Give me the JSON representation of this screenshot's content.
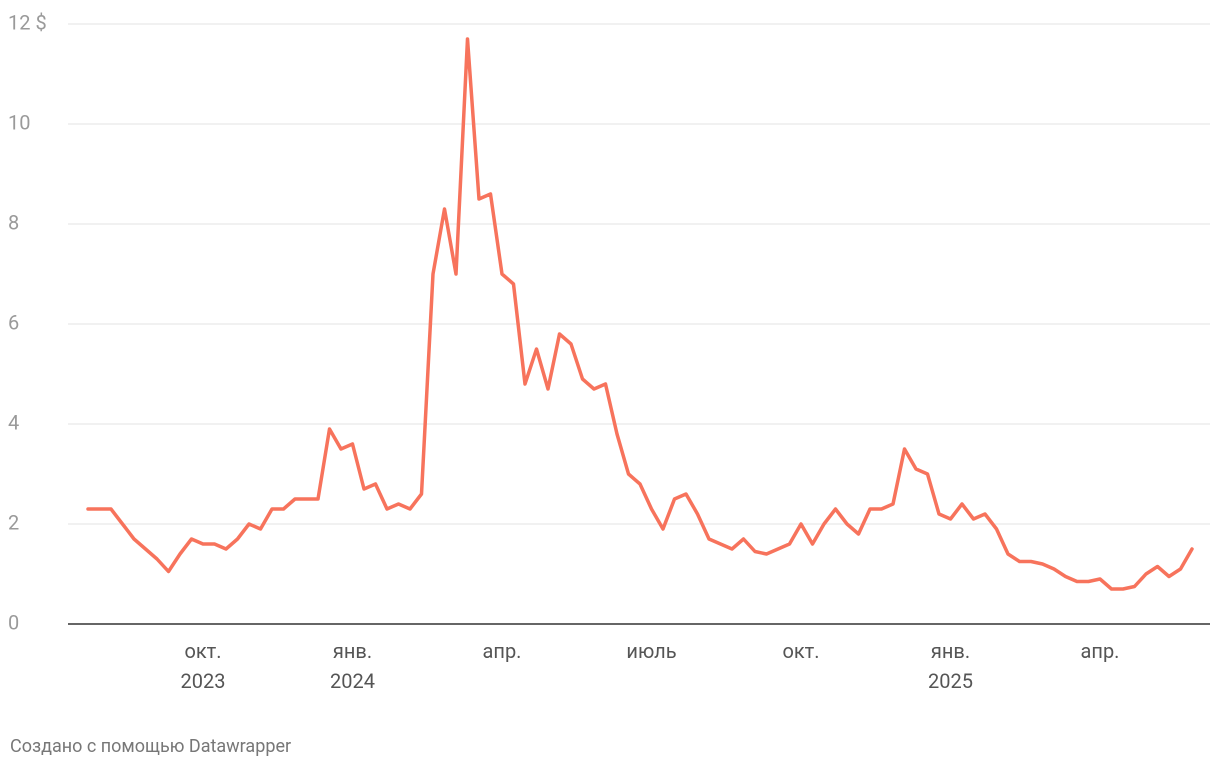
{
  "chart_data": {
    "type": "line",
    "categories": [
      null,
      null,
      null,
      null,
      null,
      null,
      null,
      null,
      null,
      null,
      "окт. 2023",
      null,
      null,
      null,
      null,
      null,
      null,
      null,
      null,
      null,
      null,
      null,
      null,
      "янв. 2024",
      null,
      null,
      null,
      null,
      null,
      null,
      null,
      null,
      null,
      null,
      null,
      null,
      "апр.",
      null,
      null,
      null,
      null,
      null,
      null,
      null,
      null,
      null,
      null,
      null,
      null,
      "июль",
      null,
      null,
      null,
      null,
      null,
      null,
      null,
      null,
      null,
      null,
      null,
      null,
      "окт.",
      null,
      null,
      null,
      null,
      null,
      null,
      null,
      null,
      null,
      null,
      null,
      null,
      "янв. 2025",
      null,
      null,
      null,
      null,
      null,
      null,
      null,
      null,
      null,
      null,
      null,
      null,
      "апр.",
      null,
      null,
      null,
      null,
      null,
      null,
      null,
      null
    ],
    "series": [
      {
        "color": "#f7735c",
        "values": [
          2.3,
          2.3,
          2.3,
          2.0,
          1.7,
          1.5,
          1.3,
          1.05,
          1.4,
          1.7,
          1.6,
          1.6,
          1.5,
          1.7,
          2.0,
          1.9,
          2.3,
          2.3,
          2.5,
          2.5,
          2.5,
          3.9,
          3.5,
          3.6,
          2.7,
          2.8,
          2.3,
          2.4,
          2.3,
          2.6,
          7.0,
          8.3,
          7.0,
          11.7,
          8.5,
          8.6,
          7.0,
          6.8,
          4.8,
          5.5,
          4.7,
          5.8,
          5.6,
          4.9,
          4.7,
          4.8,
          3.8,
          3.0,
          2.8,
          2.3,
          1.9,
          2.5,
          2.6,
          2.2,
          1.7,
          1.6,
          1.5,
          1.7,
          1.45,
          1.4,
          1.5,
          1.6,
          2.0,
          1.6,
          2.0,
          2.3,
          2.0,
          1.8,
          2.3,
          2.3,
          2.4,
          3.5,
          3.1,
          3.0,
          2.2,
          2.1,
          2.4,
          2.1,
          2.2,
          1.9,
          1.4,
          1.25,
          1.25,
          1.2,
          1.1,
          0.95,
          0.85,
          0.85,
          0.9,
          0.7,
          0.7,
          0.75,
          1.0,
          1.15,
          0.95,
          1.1,
          1.5
        ]
      }
    ],
    "ylim": [
      0,
      12
    ],
    "yticks": [
      0,
      2,
      4,
      6,
      8,
      10,
      {
        "value": 12,
        "label": "12 $"
      }
    ],
    "grid": true,
    "footer": "Создано с помощью Datawrapper"
  }
}
